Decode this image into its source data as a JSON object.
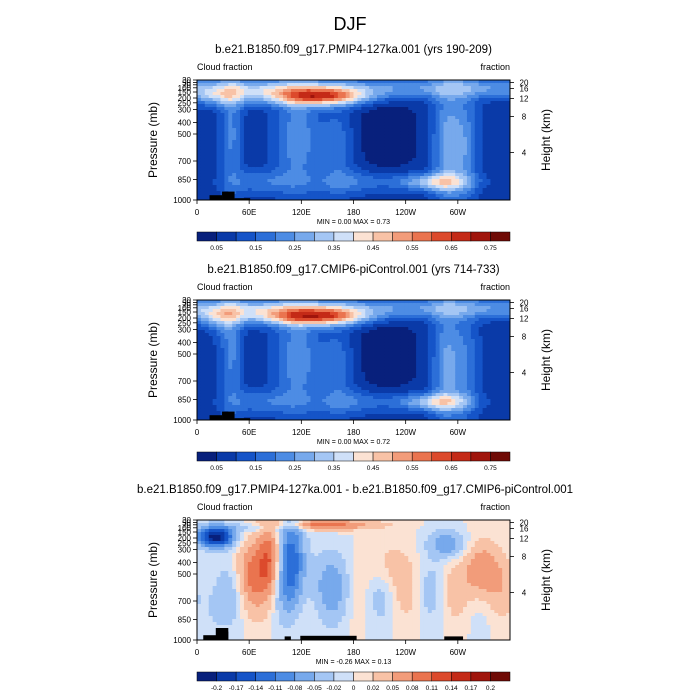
{
  "figure_title": "DJF",
  "chart_data": [
    {
      "type": "heatmap",
      "title": "b.e21.B1850.f09_g17.PMIP4-127ka.001 (yrs 190-209)",
      "left_label": "Cloud fraction",
      "right_label": "fraction",
      "ylabel": "Pressure (mb)",
      "ylabel_right": "Height (km)",
      "x_ticks": [
        "0",
        "60E",
        "120E",
        "180",
        "120W",
        "60W"
      ],
      "y_ticks": [
        1000,
        850,
        700,
        500,
        400,
        300,
        250,
        200,
        150,
        100,
        70,
        50,
        30
      ],
      "y_right_ticks": [
        "4",
        "8",
        "12",
        "16",
        "20"
      ],
      "minmax": "MIN =  0.00  MAX =  0.73",
      "colorbar_labels": [
        "0.05",
        "0.15",
        "0.25",
        "0.35",
        "0.45",
        "0.55",
        "0.65",
        "0.75"
      ],
      "value_range": [
        0,
        0.73
      ],
      "colormap": "BlueWhiteOrangeRed"
    },
    {
      "type": "heatmap",
      "title": "b.e21.B1850.f09_g17.CMIP6-piControl.001 (yrs 714-733)",
      "left_label": "Cloud fraction",
      "right_label": "fraction",
      "ylabel": "Pressure (mb)",
      "ylabel_right": "Height (km)",
      "x_ticks": [
        "0",
        "60E",
        "120E",
        "180",
        "120W",
        "60W"
      ],
      "y_ticks": [
        1000,
        850,
        700,
        500,
        400,
        300,
        250,
        200,
        150,
        100,
        70,
        50,
        30
      ],
      "y_right_ticks": [
        "4",
        "8",
        "12",
        "16",
        "20"
      ],
      "minmax": "MIN =  0.00  MAX =  0.72",
      "colorbar_labels": [
        "0.05",
        "0.15",
        "0.25",
        "0.35",
        "0.45",
        "0.55",
        "0.65",
        "0.75"
      ],
      "value_range": [
        0,
        0.72
      ],
      "colormap": "BlueWhiteOrangeRed"
    },
    {
      "type": "heatmap",
      "title": "b.e21.B1850.f09_g17.PMIP4-127ka.001 - b.e21.B1850.f09_g17.CMIP6-piControl.001",
      "left_label": "Cloud fraction",
      "right_label": "fraction",
      "ylabel": "Pressure (mb)",
      "ylabel_right": "Height (km)",
      "x_ticks": [
        "0",
        "60E",
        "120E",
        "180",
        "120W",
        "60W"
      ],
      "y_ticks": [
        1000,
        850,
        700,
        500,
        400,
        300,
        250,
        200,
        150,
        100,
        70,
        50,
        30
      ],
      "y_right_ticks": [
        "4",
        "8",
        "12",
        "16",
        "20"
      ],
      "minmax": "MIN = -0.26  MAX =  0.13",
      "colorbar_labels": [
        "-0.2",
        "-0.17",
        "-0.14",
        "-0.11",
        "-0.08",
        "-0.05",
        "-0.02",
        "0",
        "0.02",
        "0.05",
        "0.08",
        "0.11",
        "0.14",
        "0.17",
        "0.2"
      ],
      "value_range": [
        -0.26,
        0.13
      ],
      "colormap": "BlueWhiteOrangeRed"
    }
  ]
}
